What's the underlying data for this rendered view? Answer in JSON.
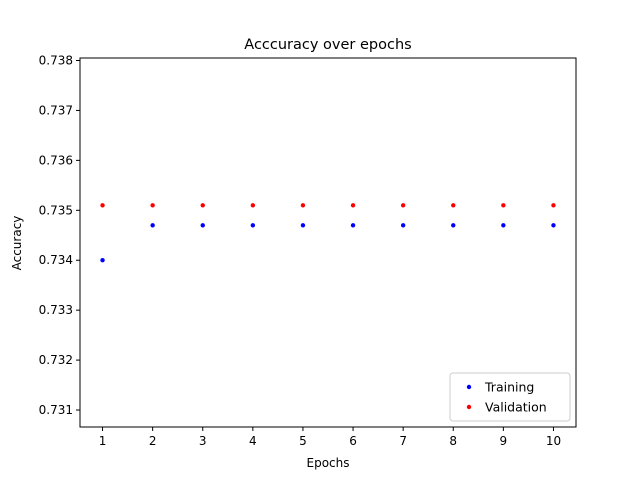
{
  "chart_data": {
    "type": "scatter",
    "title": "Acccuracy over epochs",
    "xlabel": "Epochs",
    "ylabel": "Accuracy",
    "x": [
      1,
      2,
      3,
      4,
      5,
      6,
      7,
      8,
      9,
      10
    ],
    "xticks": [
      "1",
      "2",
      "3",
      "4",
      "5",
      "6",
      "7",
      "8",
      "9",
      "10"
    ],
    "yticks": [
      "0.731",
      "0.732",
      "0.733",
      "0.734",
      "0.735",
      "0.736",
      "0.737",
      "0.738"
    ],
    "xlim": [
      0.55,
      10.45
    ],
    "ylim": [
      0.73066,
      0.73805
    ],
    "grid": false,
    "legend_position": "lower-right",
    "series": [
      {
        "name": "Training",
        "color": "#0000ff",
        "values": [
          0.734,
          0.7347,
          0.7347,
          0.7347,
          0.7347,
          0.7347,
          0.7347,
          0.7347,
          0.7347,
          0.7347
        ]
      },
      {
        "name": "Validation",
        "color": "#ff0000",
        "values": [
          0.7351,
          0.7351,
          0.7351,
          0.7351,
          0.7351,
          0.7351,
          0.7351,
          0.7351,
          0.7351,
          0.7351
        ]
      }
    ]
  }
}
